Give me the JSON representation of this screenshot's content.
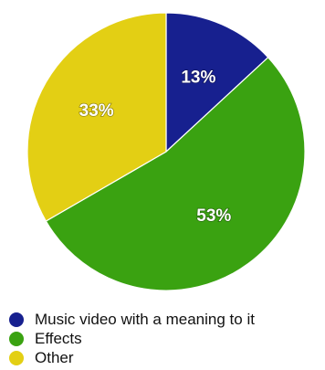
{
  "chart_data": {
    "type": "pie",
    "title": "",
    "categories": [
      "Music video with a meaning to it",
      "Effects",
      "Other"
    ],
    "values": [
      13,
      53,
      33
    ],
    "value_labels": [
      "13%",
      "53%",
      "33%"
    ],
    "colors": [
      "#17208f",
      "#3aa211",
      "#e3cf14"
    ],
    "legend_placement": "bottom-left"
  },
  "legend": {
    "items": [
      {
        "label": "Music video with a meaning to it",
        "color": "#17208f"
      },
      {
        "label": "Effects",
        "color": "#3aa211"
      },
      {
        "label": "Other",
        "color": "#e3cf14"
      }
    ]
  }
}
